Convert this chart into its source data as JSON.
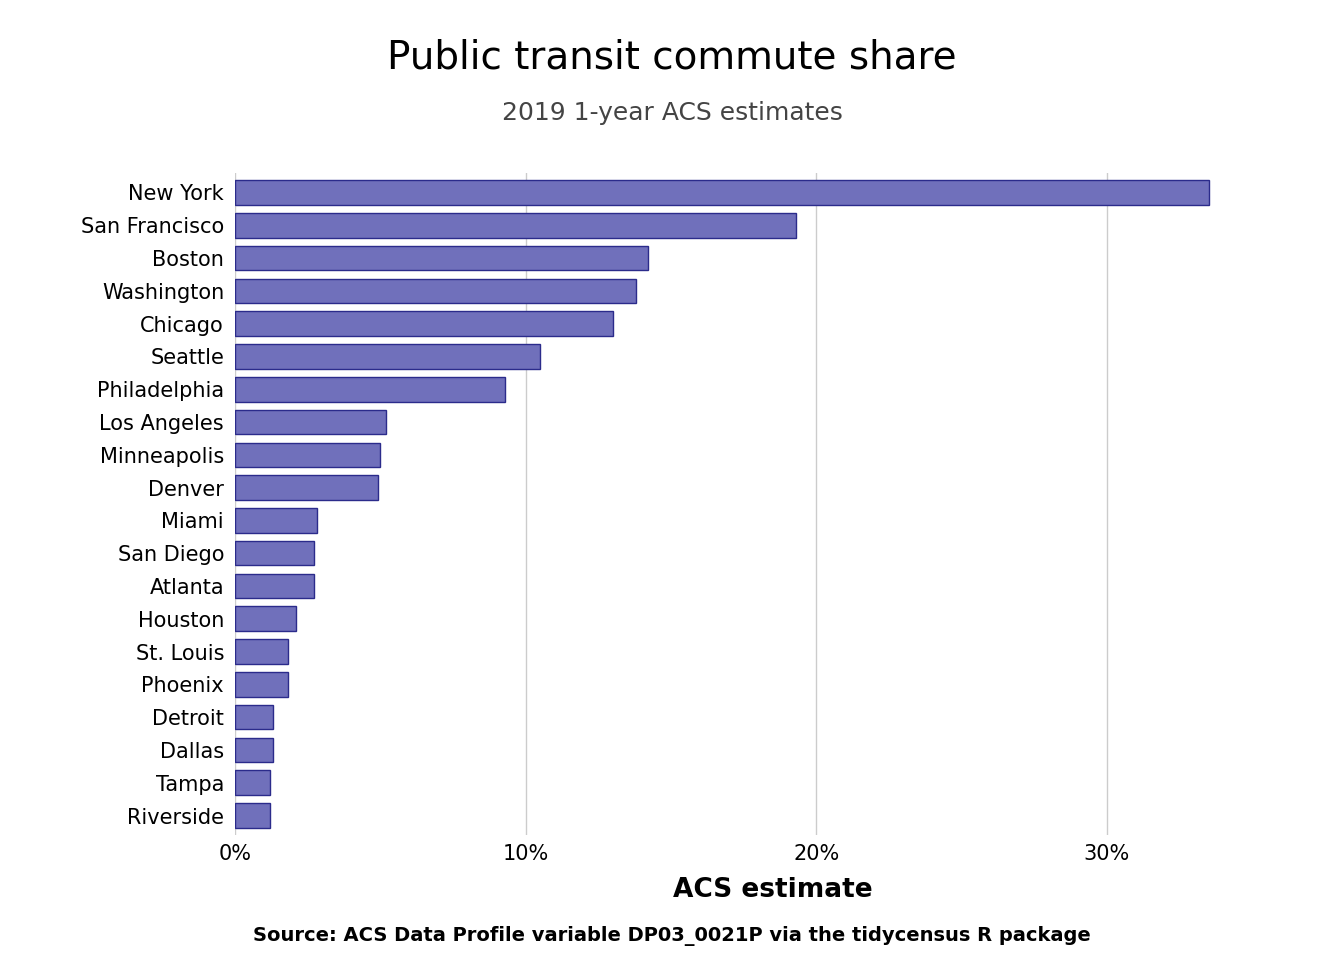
{
  "title": "Public transit commute share",
  "subtitle": "2019 1-year ACS estimates",
  "xlabel": "ACS estimate",
  "caption": "Source: ACS Data Profile variable DP03_0021P via the tidycensus R package",
  "cities": [
    "New York",
    "San Francisco",
    "Boston",
    "Washington",
    "Chicago",
    "Seattle",
    "Philadelphia",
    "Los Angeles",
    "Minneapolis",
    "Denver",
    "Miami",
    "San Diego",
    "Atlanta",
    "Houston",
    "St. Louis",
    "Phoenix",
    "Detroit",
    "Dallas",
    "Tampa",
    "Riverside"
  ],
  "values": [
    0.335,
    0.193,
    0.142,
    0.138,
    0.13,
    0.105,
    0.093,
    0.052,
    0.05,
    0.049,
    0.028,
    0.027,
    0.027,
    0.021,
    0.018,
    0.018,
    0.013,
    0.013,
    0.012,
    0.012
  ],
  "bar_color": "#7070BB",
  "bar_edge_color": "#2B2B8B",
  "background_color": "#FFFFFF",
  "grid_color": "#CCCCCC",
  "title_fontsize": 28,
  "subtitle_fontsize": 18,
  "xlabel_fontsize": 19,
  "tick_fontsize": 15,
  "caption_fontsize": 14,
  "label_fontsize": 15,
  "xlim": [
    0,
    0.37
  ]
}
